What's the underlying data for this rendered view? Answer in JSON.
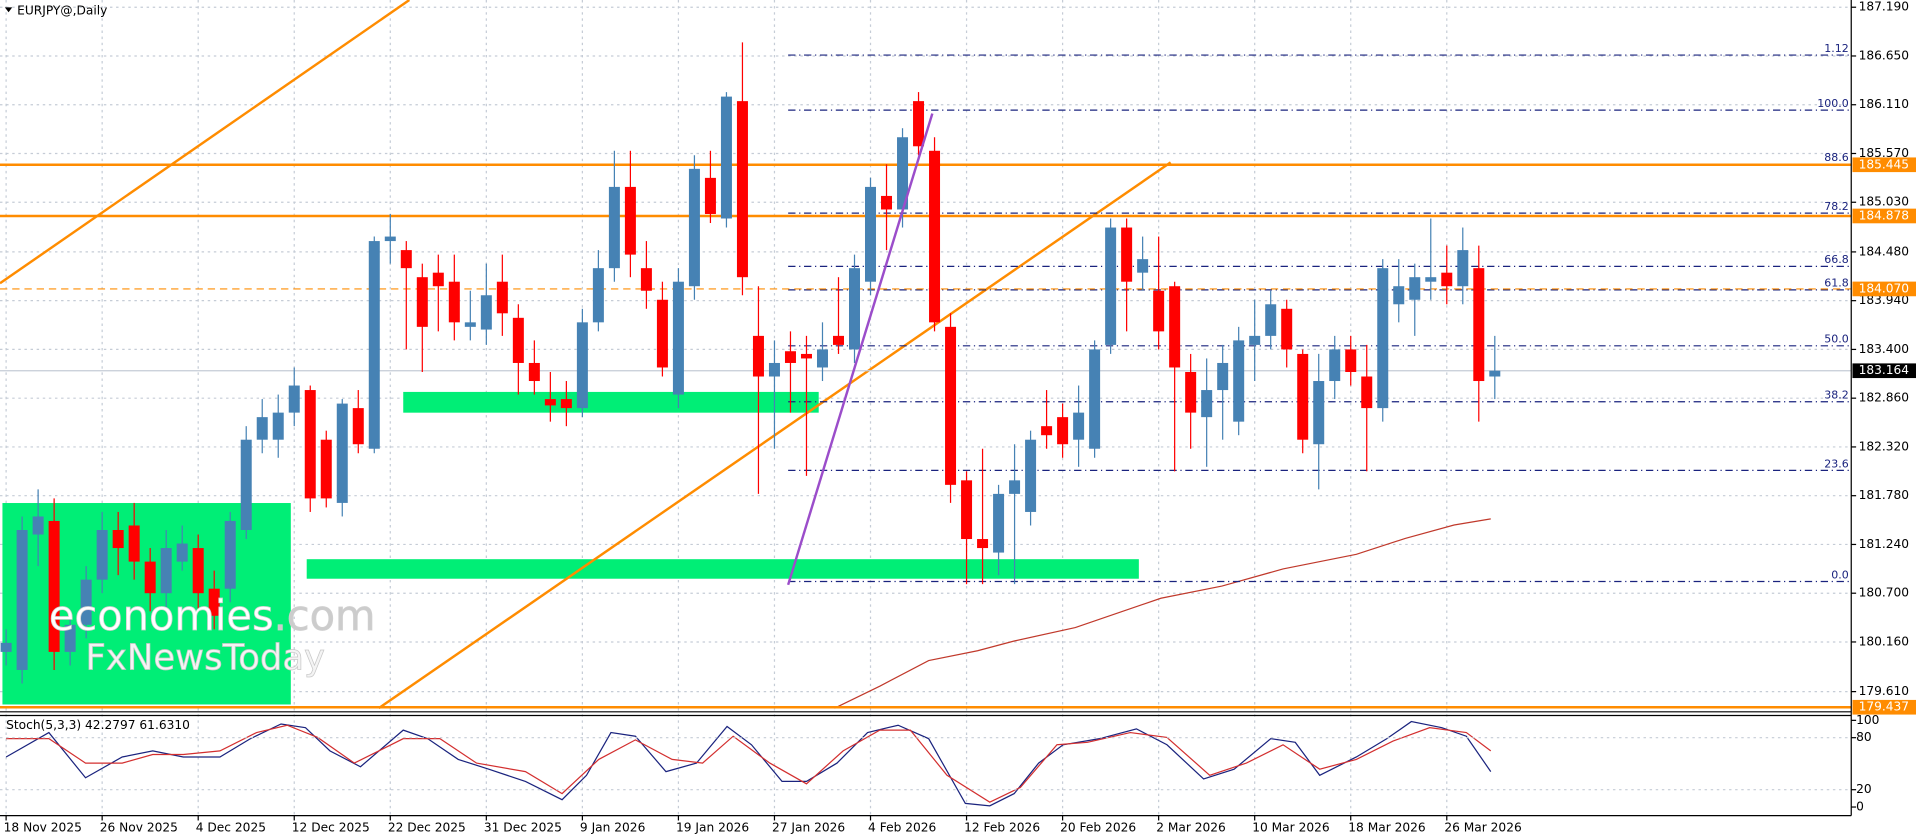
{
  "chart_data": {
    "type": "candlestick",
    "title": "EURJPY@,Daily",
    "categories": [
      "18 Nov 2025",
      null,
      null,
      null,
      null,
      null,
      "26 Nov 2025",
      null,
      null,
      null,
      null,
      null,
      "4 Dec 2025",
      null,
      null,
      null,
      null,
      null,
      "12 Dec 2025",
      null,
      null,
      null,
      null,
      null,
      "22 Dec 2025",
      null,
      null,
      null,
      null,
      null,
      "31 Dec 2025",
      null,
      null,
      null,
      null,
      null,
      "9 Jan 2026",
      null,
      null,
      null,
      null,
      null,
      "19 Jan 2026",
      null,
      null,
      null,
      null,
      null,
      "27 Jan 2026",
      null,
      null,
      null,
      null,
      null,
      "4 Feb 2026",
      null,
      null,
      null,
      null,
      null,
      "12 Feb 2026",
      null,
      null,
      null,
      null,
      null,
      "20 Feb 2026",
      null,
      null,
      null,
      null,
      null,
      "2 Mar 2026",
      null,
      null,
      null,
      null,
      null,
      "10 Mar 2026",
      null,
      null,
      null,
      null,
      null,
      "18 Mar 2026",
      null,
      null,
      null,
      null,
      null,
      "26 Mar 2026",
      null,
      null,
      null
    ],
    "open": [
      180.05,
      179.85,
      181.35,
      181.5,
      180.05,
      180.35,
      180.85,
      181.4,
      181.45,
      181.05,
      180.7,
      181.05,
      181.2,
      180.75,
      180.75,
      181.4,
      182.4,
      182.4,
      182.7,
      182.95,
      182.4,
      181.7,
      182.75,
      182.3,
      184.6,
      184.5,
      184.2,
      184.25,
      184.15,
      183.65,
      183.62,
      184.15,
      183.75,
      183.25,
      182.85,
      182.85,
      182.75,
      183.7,
      184.3,
      185.2,
      184.3,
      183.95,
      182.9,
      184.1,
      185.3,
      184.85,
      186.15,
      183.55,
      183.1,
      183.38,
      183.35,
      183.2,
      183.55,
      183.4,
      184.15,
      185.1,
      184.95,
      186.15,
      185.6,
      183.65,
      181.95,
      181.3,
      181.15,
      181.8,
      181.6,
      182.55,
      182.65,
      182.4,
      182.3,
      183.45,
      184.75,
      184.25,
      184.05,
      184.1,
      183.15,
      182.65,
      182.95,
      182.6,
      183.45,
      183.55,
      183.85,
      183.35,
      182.35,
      183.05,
      183.4,
      183.1,
      182.75,
      183.9,
      183.95,
      184.15,
      184.25,
      184.1,
      184.3,
      183.1
    ],
    "high": [
      180.3,
      181.55,
      181.85,
      181.75,
      180.5,
      181.0,
      181.6,
      181.6,
      181.7,
      181.2,
      181.4,
      181.45,
      181.35,
      180.95,
      181.6,
      182.55,
      182.85,
      182.9,
      183.2,
      183.0,
      182.5,
      182.85,
      182.95,
      184.65,
      184.9,
      184.6,
      184.35,
      184.45,
      184.45,
      184.05,
      184.35,
      184.45,
      183.9,
      183.5,
      183.15,
      183.05,
      183.85,
      184.5,
      185.6,
      185.6,
      184.6,
      184.15,
      184.3,
      185.55,
      185.6,
      186.25,
      186.8,
      184.1,
      183.5,
      183.6,
      183.55,
      183.7,
      184.2,
      184.45,
      185.3,
      185.45,
      185.85,
      186.25,
      185.75,
      183.8,
      182.05,
      182.3,
      181.9,
      182.35,
      182.5,
      182.95,
      182.8,
      183.0,
      183.5,
      184.85,
      184.85,
      184.65,
      184.65,
      184.15,
      183.35,
      183.3,
      183.45,
      183.65,
      183.95,
      184.05,
      183.95,
      183.4,
      183.35,
      183.55,
      183.55,
      183.45,
      184.4,
      184.4,
      184.35,
      184.85,
      184.55,
      184.75,
      184.55,
      183.55
    ],
    "low": [
      179.9,
      179.7,
      181.0,
      179.85,
      179.9,
      180.2,
      180.7,
      180.9,
      180.85,
      180.5,
      180.5,
      180.95,
      180.5,
      180.3,
      180.6,
      181.3,
      182.25,
      182.2,
      182.55,
      181.6,
      181.65,
      181.55,
      182.25,
      182.25,
      184.35,
      183.4,
      183.15,
      183.6,
      183.5,
      183.5,
      183.45,
      183.55,
      182.9,
      182.9,
      182.6,
      182.55,
      182.65,
      183.6,
      184.15,
      184.2,
      183.85,
      183.1,
      182.75,
      183.95,
      184.8,
      184.75,
      184.0,
      181.8,
      182.3,
      182.7,
      182.0,
      183.05,
      183.35,
      183.25,
      184.0,
      184.5,
      184.75,
      185.55,
      183.6,
      181.7,
      180.8,
      180.8,
      180.9,
      180.8,
      181.45,
      182.3,
      182.2,
      182.1,
      182.2,
      183.35,
      183.6,
      184.05,
      183.4,
      182.05,
      182.3,
      182.1,
      182.4,
      182.45,
      183.05,
      183.4,
      183.2,
      182.25,
      181.85,
      182.85,
      183.0,
      182.05,
      182.6,
      183.7,
      183.55,
      183.95,
      183.9,
      183.9,
      182.6,
      182.85
    ],
    "close": [
      180.15,
      181.4,
      181.55,
      180.05,
      180.35,
      180.85,
      181.4,
      181.2,
      181.05,
      180.7,
      181.2,
      181.25,
      180.7,
      180.45,
      181.5,
      182.4,
      182.65,
      182.7,
      183.0,
      181.75,
      181.75,
      182.8,
      182.35,
      184.6,
      184.65,
      184.3,
      183.65,
      184.1,
      183.7,
      183.7,
      184.0,
      183.8,
      183.25,
      183.05,
      182.78,
      182.75,
      183.7,
      184.3,
      185.2,
      184.45,
      184.05,
      183.2,
      184.15,
      185.4,
      184.9,
      186.2,
      184.2,
      183.1,
      183.25,
      183.25,
      183.3,
      183.4,
      183.45,
      184.3,
      185.2,
      184.95,
      185.75,
      185.65,
      183.7,
      181.9,
      181.3,
      181.2,
      181.8,
      181.95,
      182.4,
      182.45,
      182.35,
      182.7,
      183.4,
      184.75,
      184.15,
      184.4,
      183.6,
      183.2,
      182.7,
      182.95,
      183.25,
      183.5,
      183.55,
      183.9,
      183.4,
      182.4,
      183.05,
      183.4,
      183.15,
      182.75,
      184.3,
      184.1,
      184.2,
      184.2,
      184.1,
      184.5,
      183.05,
      183.164
    ],
    "up_color": "#4682b4",
    "down_color": "#ff0000",
    "ylim": [
      179.4,
      187.27
    ],
    "yticks": [
      {
        "value": 187.19,
        "label": "187.190"
      },
      {
        "value": 186.65,
        "label": "186.650"
      },
      {
        "value": 186.11,
        "label": "186.110"
      },
      {
        "value": 185.57,
        "label": "185.570"
      },
      {
        "value": 185.03,
        "label": "185.030"
      },
      {
        "value": 184.48,
        "label": "184.480"
      },
      {
        "value": 183.94,
        "label": "183.940"
      },
      {
        "value": 183.4,
        "label": "183.400"
      },
      {
        "value": 182.86,
        "label": "182.860"
      },
      {
        "value": 182.32,
        "label": "182.320"
      },
      {
        "value": 181.78,
        "label": "181.780"
      },
      {
        "value": 181.24,
        "label": "181.240"
      },
      {
        "value": 180.7,
        "label": "180.700"
      },
      {
        "value": 180.16,
        "label": "180.160"
      },
      {
        "value": 179.61,
        "label": "179.610"
      }
    ],
    "grid": true,
    "price_lines": [
      {
        "value": 185.445,
        "label": "185.445",
        "color": "#ff8c00",
        "style": "solid"
      },
      {
        "value": 184.878,
        "label": "184.878",
        "color": "#ff8c00",
        "style": "solid"
      },
      {
        "value": 184.07,
        "label": "184.070",
        "color": "#ff8c00",
        "style": "dashed"
      },
      {
        "value": 179.437,
        "label": "179.437",
        "color": "#ff8c00",
        "style": "solid"
      }
    ],
    "last_price": {
      "value": 183.164,
      "label": "183.164"
    },
    "fibonacci": {
      "color": "#1a237e",
      "levels": [
        {
          "value": 186.66,
          "label": "1.12"
        },
        {
          "value": 186.05,
          "label": "100.0"
        },
        {
          "value": 185.45,
          "label": "88.6"
        },
        {
          "value": 184.91,
          "label": "78.2"
        },
        {
          "value": 184.32,
          "label": "66.8"
        },
        {
          "value": 184.06,
          "label": "61.8"
        },
        {
          "value": 183.44,
          "label": "50.0"
        },
        {
          "value": 182.82,
          "label": "38.2"
        },
        {
          "value": 182.06,
          "label": "23.6"
        },
        {
          "value": 180.83,
          "label": "0.0"
        }
      ]
    },
    "indicator": {
      "name": "Stoch(5,3,3)",
      "values": [
        42.2797,
        61.631
      ],
      "value_labels": [
        "42.2797",
        "61.6310"
      ],
      "ylim": [
        0,
        100
      ],
      "yticks": [
        100,
        80,
        20,
        0
      ]
    },
    "watermark": {
      "brand": "economies",
      "domain": ".com",
      "line2": "FxNewsToday"
    }
  }
}
